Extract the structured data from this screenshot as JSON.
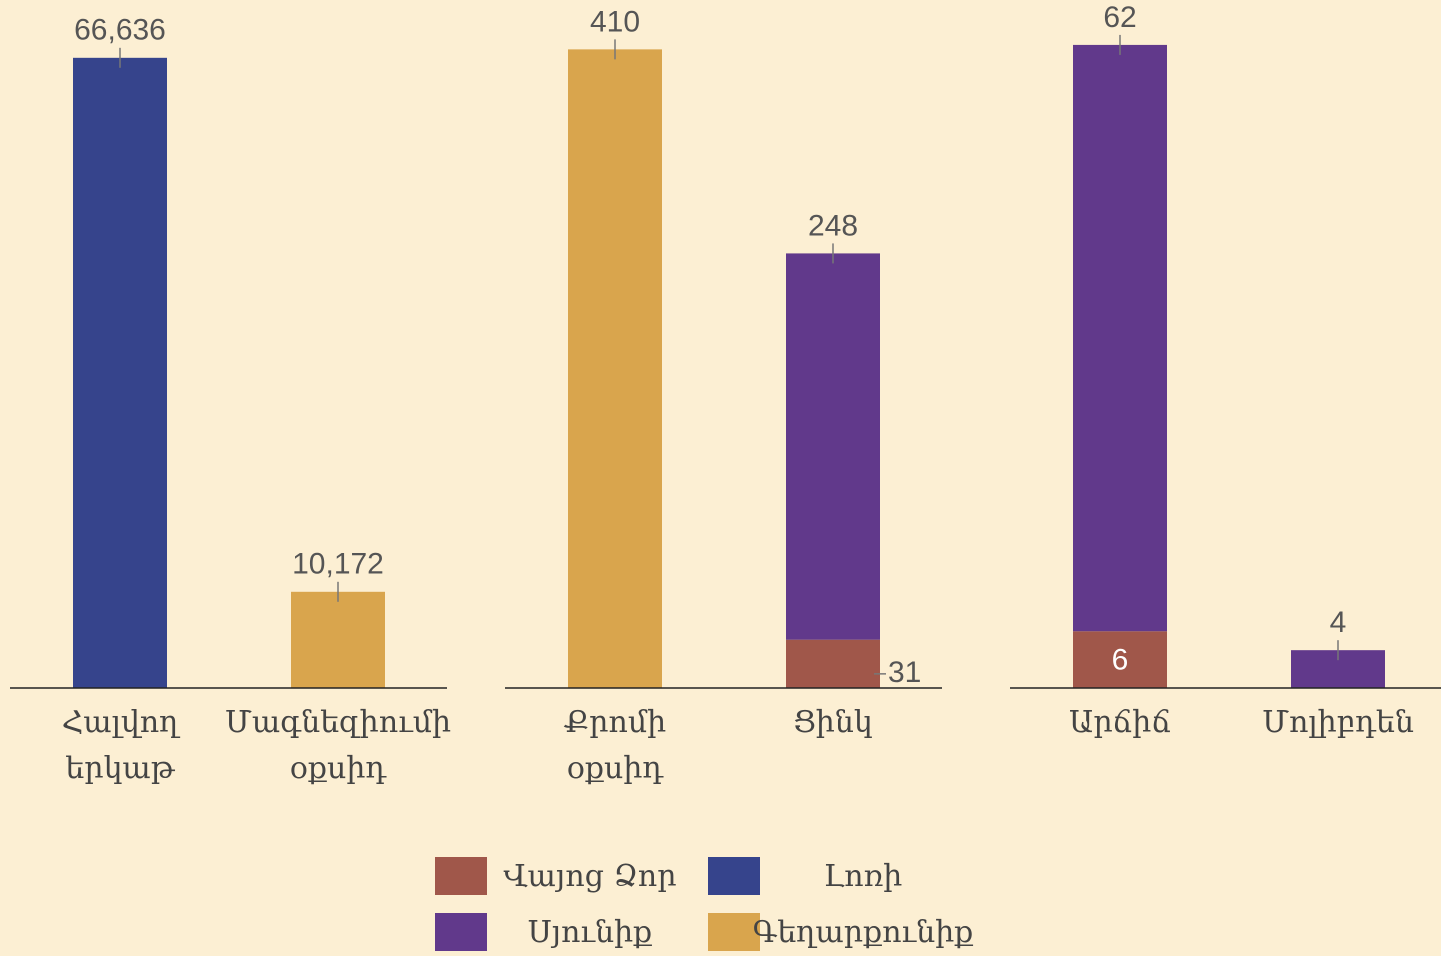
{
  "chart_data": [
    {
      "type": "bar",
      "stacked": true,
      "categories": [
        "Հալվող երկաթ",
        "Մագնեզիումի օքսիդ"
      ],
      "series": [
        {
          "name": "Լոռի",
          "color": "#36448c",
          "values": [
            66636,
            null
          ],
          "value_labels": [
            "66,636",
            null
          ]
        },
        {
          "name": "Գեղարքունիք",
          "color": "#d9a54d",
          "values": [
            null,
            10172
          ],
          "value_labels": [
            null,
            "10,172"
          ]
        }
      ],
      "ylim": [
        0,
        70000
      ]
    },
    {
      "type": "bar",
      "stacked": true,
      "categories": [
        "Քրոմի օքսիդ",
        "Ցինկ"
      ],
      "series": [
        {
          "name": "Վայոց Ձոր",
          "color": "#a0574a",
          "values": [
            null,
            31
          ]
        },
        {
          "name": "Սյունիք",
          "color": "#61398b",
          "values": [
            null,
            248
          ]
        },
        {
          "name": "Գեղարքունիք",
          "color": "#d9a54d",
          "values": [
            410,
            null
          ]
        }
      ],
      "ylim": [
        0,
        425
      ]
    },
    {
      "type": "bar",
      "stacked": true,
      "categories": [
        "Արճիճ",
        "Մոլիբդեն"
      ],
      "series": [
        {
          "name": "Վայոց Ձոր",
          "color": "#a0574a",
          "values": [
            6,
            null
          ]
        },
        {
          "name": "Սյունիք",
          "color": "#61398b",
          "values": [
            62,
            4
          ]
        }
      ],
      "ylim": [
        0,
        70
      ]
    }
  ]
}
